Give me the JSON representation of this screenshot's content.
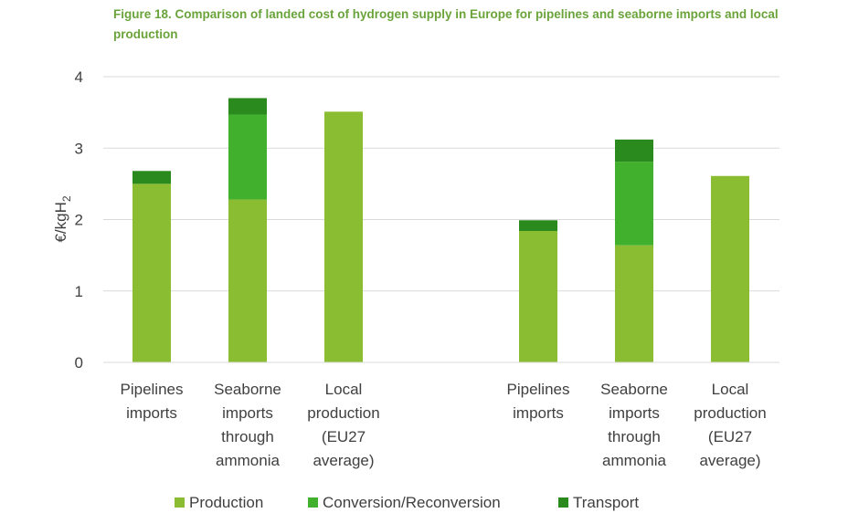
{
  "title": "Figure 18. Comparison of landed cost of hydrogen supply in Europe for pipelines and seaborne imports and local production",
  "chart_data": {
    "type": "bar",
    "stacked": true,
    "title": "Figure 18. Comparison of landed cost of hydrogen supply in Europe for pipelines and seaborne imports and local production",
    "ylabel": "€/kgH",
    "ylabel_sub": "2",
    "ylim": [
      0,
      4
    ],
    "yticks": [
      0,
      1,
      2,
      3,
      4
    ],
    "grid": true,
    "legend_position": "bottom",
    "categories": [
      [
        "Pipelines",
        "imports"
      ],
      [
        "Seaborne",
        "imports",
        "through",
        "ammonia"
      ],
      [
        "Local",
        "production",
        "(EU27",
        "average)"
      ],
      [
        "Pipelines",
        "imports"
      ],
      [
        "Seaborne",
        "imports",
        "through",
        "ammonia"
      ],
      [
        "Local",
        "production",
        "(EU27",
        "average)"
      ]
    ],
    "series": [
      {
        "name": "Production",
        "color": "#8bbd32",
        "values": [
          2.5,
          2.28,
          3.51,
          1.84,
          1.64,
          2.61
        ]
      },
      {
        "name": "Conversion/Reconversion",
        "color": "#41b02c",
        "values": [
          0,
          1.19,
          0,
          0,
          1.17,
          0
        ]
      },
      {
        "name": "Transport",
        "color": "#2b8a1e",
        "values": [
          0.18,
          0.23,
          0,
          0.15,
          0.31,
          0
        ]
      }
    ]
  }
}
